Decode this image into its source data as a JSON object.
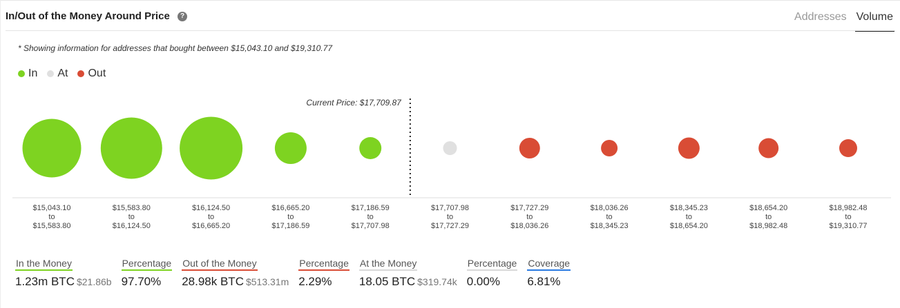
{
  "header": {
    "title": "In/Out of the Money Around Price",
    "help_icon": "question-circle-icon",
    "tabs": [
      {
        "label": "Addresses",
        "active": false
      },
      {
        "label": "Volume",
        "active": true
      }
    ]
  },
  "note": "* Showing information for addresses that bought between $15,043.10 and $19,310.77",
  "legend": [
    {
      "label": "In",
      "color": "#7ed321"
    },
    {
      "label": "At",
      "color": "#e0e0e0"
    },
    {
      "label": "Out",
      "color": "#d94c35"
    }
  ],
  "chart_data": {
    "type": "scatter",
    "current_price_label": "Current Price: $17,709.87",
    "current_price_position": 5,
    "ranges": [
      {
        "from": "$15,043.10",
        "to_word": "to",
        "to": "$15,583.80",
        "status": "In",
        "relative_size": 0.85
      },
      {
        "from": "$15,583.80",
        "to_word": "to",
        "to": "$16,124.50",
        "status": "In",
        "relative_size": 0.89
      },
      {
        "from": "$16,124.50",
        "to_word": "to",
        "to": "$16,665.20",
        "status": "In",
        "relative_size": 0.91
      },
      {
        "from": "$16,665.20",
        "to_word": "to",
        "to": "$17,186.59",
        "status": "In",
        "relative_size": 0.46
      },
      {
        "from": "$17,186.59",
        "to_word": "to",
        "to": "$17,707.98",
        "status": "In",
        "relative_size": 0.32
      },
      {
        "from": "$17,707.98",
        "to_word": "to",
        "to": "$17,727.29",
        "status": "At",
        "relative_size": 0.2
      },
      {
        "from": "$17,727.29",
        "to_word": "to",
        "to": "$18,036.26",
        "status": "Out",
        "relative_size": 0.3
      },
      {
        "from": "$18,036.26",
        "to_word": "to",
        "to": "$18,345.23",
        "status": "Out",
        "relative_size": 0.24
      },
      {
        "from": "$18,345.23",
        "to_word": "to",
        "to": "$18,654.20",
        "status": "Out",
        "relative_size": 0.31
      },
      {
        "from": "$18,654.20",
        "to_word": "to",
        "to": "$18,982.48",
        "status": "Out",
        "relative_size": 0.29
      },
      {
        "from": "$18,982.48",
        "to_word": "to",
        "to": "$19,310.77",
        "status": "Out",
        "relative_size": 0.26
      }
    ],
    "colors": {
      "In": "#7ed321",
      "At": "#e0e0e0",
      "Out": "#d94c35"
    }
  },
  "stats": [
    {
      "label": "In the Money",
      "value": "1.23m BTC",
      "sub": "$21.86b",
      "color": "#7ed321"
    },
    {
      "label": "Percentage",
      "value": "97.70%",
      "sub": "",
      "color": "#7ed321"
    },
    {
      "label": "Out of the Money",
      "value": "28.98k BTC",
      "sub": "$513.31m",
      "color": "#d94c35"
    },
    {
      "label": "Percentage",
      "value": "2.29%",
      "sub": "",
      "color": "#d94c35"
    },
    {
      "label": "At the Money",
      "value": "18.05 BTC",
      "sub": "$319.74k",
      "color": "#d8d8d8"
    },
    {
      "label": "Percentage",
      "value": "0.00%",
      "sub": "",
      "color": "#d8d8d8"
    },
    {
      "label": "Coverage",
      "value": "6.81%",
      "sub": "",
      "color": "#2a7ae2"
    }
  ]
}
